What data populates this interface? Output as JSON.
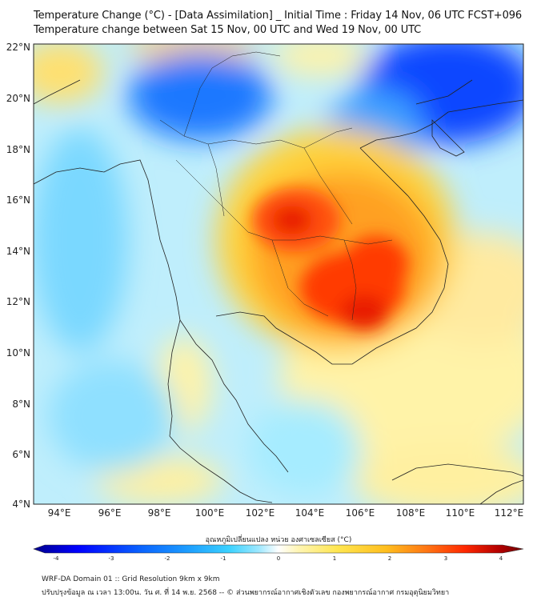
{
  "header": {
    "title_line1": "Temperature Change (°C) - [Data Assimilation] _ Initial Time : Friday 14 Nov, 06 UTC FCST+096",
    "title_line2": "Temperature change between Sat 15 Nov, 00 UTC and Wed 19 Nov, 00 UTC"
  },
  "map": {
    "lat_labels": [
      "22°N",
      "20°N",
      "18°N",
      "16°N",
      "14°N",
      "12°N",
      "10°N",
      "8°N",
      "6°N",
      "4°N"
    ],
    "lon_labels": [
      "94°E",
      "96°E",
      "98°E",
      "100°E",
      "102°E",
      "104°E",
      "106°E",
      "108°E",
      "110°E",
      "112°E"
    ],
    "lat_range": [
      4,
      22.2
    ],
    "lon_range": [
      93,
      112.5
    ],
    "field": "temperature change",
    "warm_centers": [
      "central Thailand",
      "Cambodia",
      "southern Laos"
    ],
    "cool_centers": [
      "northern Thailand / Myanmar border",
      "southern China",
      "Gulf of Tonkin",
      "Andaman Sea"
    ]
  },
  "colorbar": {
    "title": "อุณหภูมิเปลี่ยนแปลง หน่วย องศาเซลเซียส (°C)",
    "ticks": [
      "-4",
      "-3",
      "-2",
      "-1",
      "0",
      "1",
      "2",
      "3",
      "4"
    ],
    "min": -4,
    "max": 4,
    "colors": [
      "#00008b",
      "#0000ff",
      "#0a64ff",
      "#1ea0ff",
      "#3cd2ff",
      "#9ee8ff",
      "#ffffff",
      "#fff5b4",
      "#ffe650",
      "#ffbe1e",
      "#ff7814",
      "#ff2800",
      "#b40000",
      "#6e0000"
    ]
  },
  "footer": {
    "line1": "WRF-DA Domain 01 :: Grid Resolution 9km x 9km",
    "line2": "ปรับปรุงข้อมูล ณ เวลา 13:00น. วัน ศ. ที่ 14 พ.ย. 2568 -- © ส่วนพยากรณ์อากาศเชิงตัวเลข กองพยากรณ์อากาศ กรมอุตุนิยมวิทยา"
  }
}
